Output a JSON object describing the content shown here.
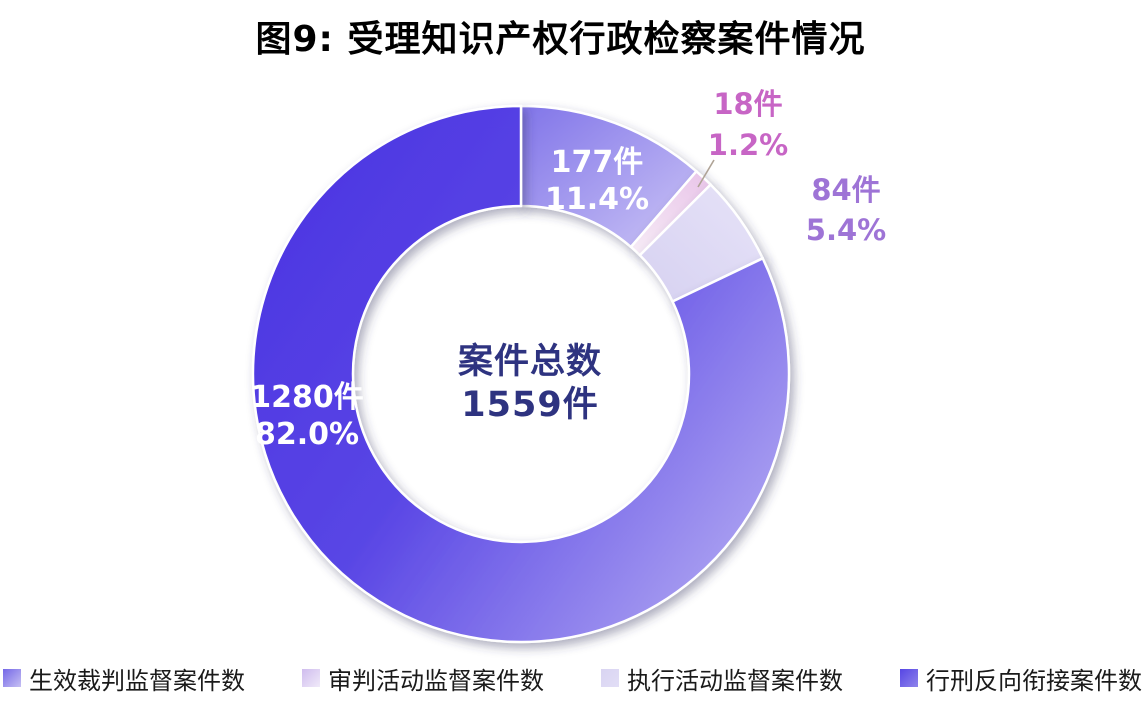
{
  "title": "图9: 受理知识产权行政检察案件情况",
  "chart_data": {
    "type": "donut",
    "title": "图9: 受理知识产权行政检察案件情况",
    "center_label": {
      "line1": "案件总数",
      "line2": "1559件"
    },
    "total": 1559,
    "unit": "件",
    "legend_position": "bottom",
    "segments": [
      {
        "name": "生效裁判监督案件数",
        "value": 177,
        "pct": 11.4,
        "cases_label": "177件",
        "pct_label": "11.4%",
        "label_placement": "inside",
        "slice_colors": [
          "#8175E9",
          "#CBC4F5"
        ],
        "swatch_colors": [
          "#7467E7",
          "#C6C0F3"
        ]
      },
      {
        "name": "审判活动监督案件数",
        "value": 18,
        "pct": 1.2,
        "cases_label": "18件",
        "pct_label": "1.2%",
        "label_placement": "outside",
        "slice_colors": [
          "#E9C4E9",
          "#F6ECF6"
        ],
        "swatch_colors": [
          "#CFBCEE",
          "#F0EAF9"
        ]
      },
      {
        "name": "执行活动监督案件数",
        "value": 84,
        "pct": 5.4,
        "cases_label": "84件",
        "pct_label": "5.4%",
        "label_placement": "outside",
        "slice_colors": [
          "#D6D1F1",
          "#E7E3F8"
        ],
        "swatch_colors": [
          "#D9D4F2",
          "#E2DEF6"
        ]
      },
      {
        "name": "行刑反向衔接案件数",
        "value": 1280,
        "pct": 82.0,
        "cases_label": "1280件",
        "pct_label": "82.0%",
        "label_placement": "inside",
        "slice_colors": [
          "#4C35E2",
          "#5946E5",
          "#B3AAF2"
        ],
        "swatch_colors": [
          "#5646E4",
          "#8F84EB"
        ]
      }
    ],
    "colors": {
      "title_text": "#000000",
      "center_text": "#2E3380",
      "inside_label_text": "#FFFFFF",
      "label_18": "#C765C5",
      "label_84": "#9E74D6",
      "leader_line": "#AFA396",
      "legend_text": "#1A1A1A",
      "background": "#FFFFFF"
    }
  }
}
